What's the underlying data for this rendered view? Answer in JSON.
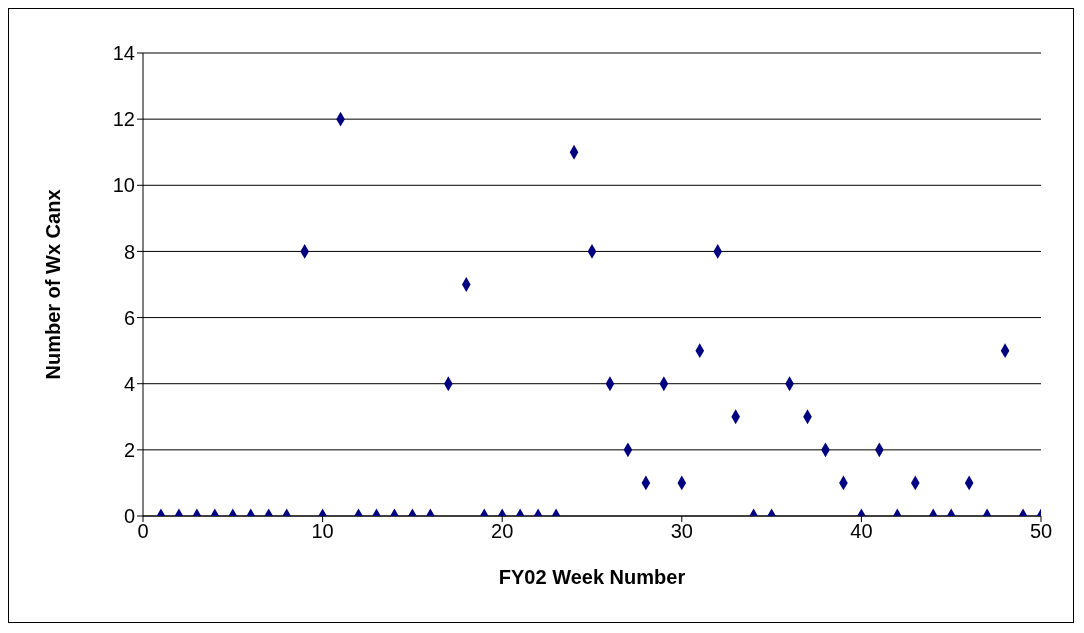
{
  "chart_data": {
    "type": "scatter",
    "xlabel": "FY02 Week Number",
    "ylabel": "Number of Wx Canx",
    "x": [
      1,
      2,
      3,
      4,
      5,
      6,
      7,
      8,
      9,
      10,
      11,
      12,
      13,
      14,
      15,
      16,
      17,
      18,
      19,
      20,
      21,
      22,
      23,
      24,
      25,
      26,
      27,
      28,
      29,
      30,
      31,
      32,
      33,
      34,
      35,
      36,
      37,
      38,
      39,
      40,
      41,
      42,
      43,
      44,
      45,
      46,
      47,
      48,
      49,
      50
    ],
    "series": [
      {
        "color": "#000080",
        "values": [
          0,
          0,
          0,
          0,
          0,
          0,
          0,
          0,
          8,
          0,
          12,
          0,
          0,
          0,
          0,
          0,
          4,
          7,
          0,
          0,
          0,
          0,
          0,
          11,
          8,
          4,
          2,
          1,
          4,
          1,
          5,
          8,
          3,
          0,
          0,
          4,
          3,
          2,
          1,
          0,
          2,
          0,
          1,
          0,
          0,
          1,
          0,
          5,
          0,
          0
        ]
      }
    ],
    "xlim": [
      0,
      50
    ],
    "xticks": [
      0,
      10,
      20,
      30,
      40,
      50
    ],
    "ylim": [
      0,
      14
    ],
    "yticks": [
      0,
      2,
      4,
      6,
      8,
      10,
      12,
      14
    ],
    "grid": "y",
    "marker": "diamond",
    "legend": false
  }
}
